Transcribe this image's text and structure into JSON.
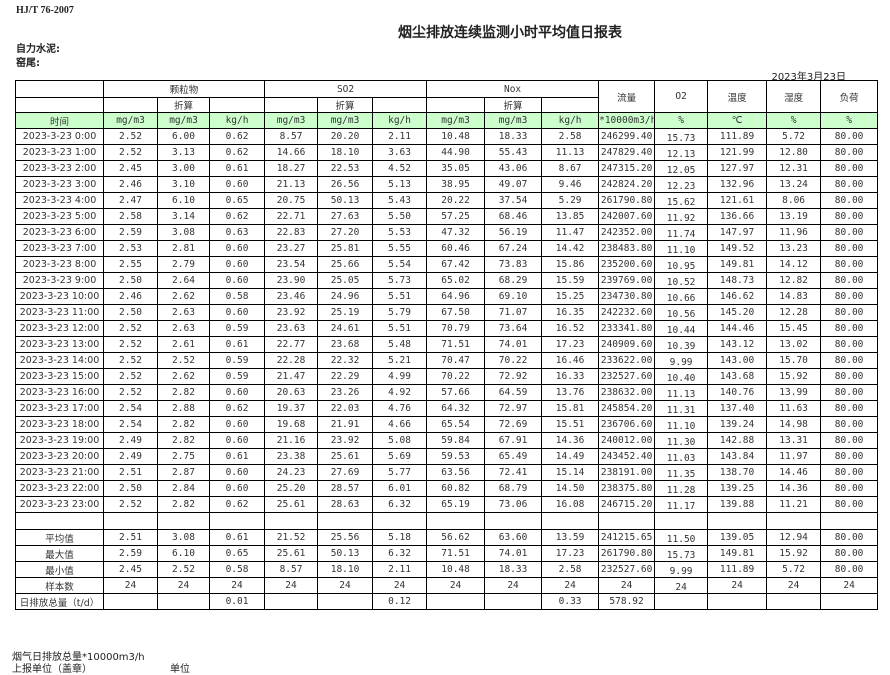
{
  "standard": "HJ/T  76-2007",
  "title": "烟尘排放连续监测小时平均值日报表",
  "plant": "自力水泥:",
  "kiln": "窑尾:",
  "date": "2023年3月23日",
  "headers": {
    "particulate": "颗粒物",
    "so2": "SO2",
    "nox": "Nox",
    "converted": "折算",
    "flow": "流量",
    "o2": "O2",
    "temperature": "温度",
    "humidity": "湿度",
    "load": "负荷"
  },
  "units": [
    "时间",
    "mg/m3",
    "mg/m3",
    "kg/h",
    "mg/m3",
    "mg/m3",
    "kg/h",
    "mg/m3",
    "mg/m3",
    "kg/h",
    "*10000m3/h",
    "%",
    "℃",
    "%",
    "%"
  ],
  "rows": [
    [
      "2023-3-23 0:00",
      "2.52",
      "6.00",
      "0.62",
      "8.57",
      "20.20",
      "2.11",
      "10.48",
      "18.33",
      "2.58",
      "246299.40",
      "15.73",
      "111.89",
      "5.72",
      "80.00"
    ],
    [
      "2023-3-23 1:00",
      "2.52",
      "3.13",
      "0.62",
      "14.66",
      "18.10",
      "3.63",
      "44.90",
      "55.43",
      "11.13",
      "247829.40",
      "12.13",
      "121.99",
      "12.80",
      "80.00"
    ],
    [
      "2023-3-23 2:00",
      "2.45",
      "3.00",
      "0.61",
      "18.27",
      "22.53",
      "4.52",
      "35.05",
      "43.06",
      "8.67",
      "247315.20",
      "12.05",
      "127.97",
      "12.31",
      "80.00"
    ],
    [
      "2023-3-23 3:00",
      "2.46",
      "3.10",
      "0.60",
      "21.13",
      "26.56",
      "5.13",
      "38.95",
      "49.07",
      "9.46",
      "242824.20",
      "12.23",
      "132.96",
      "13.24",
      "80.00"
    ],
    [
      "2023-3-23 4:00",
      "2.47",
      "6.10",
      "0.65",
      "20.75",
      "50.13",
      "5.43",
      "20.22",
      "37.54",
      "5.29",
      "261790.80",
      "15.62",
      "121.61",
      "8.06",
      "80.00"
    ],
    [
      "2023-3-23 5:00",
      "2.58",
      "3.14",
      "0.62",
      "22.71",
      "27.63",
      "5.50",
      "57.25",
      "68.46",
      "13.85",
      "242007.60",
      "11.92",
      "136.66",
      "13.19",
      "80.00"
    ],
    [
      "2023-3-23 6:00",
      "2.59",
      "3.08",
      "0.63",
      "22.83",
      "27.20",
      "5.53",
      "47.32",
      "56.19",
      "11.47",
      "242352.00",
      "11.74",
      "147.97",
      "11.96",
      "80.00"
    ],
    [
      "2023-3-23 7:00",
      "2.53",
      "2.81",
      "0.60",
      "23.27",
      "25.81",
      "5.55",
      "60.46",
      "67.24",
      "14.42",
      "238483.80",
      "11.10",
      "149.52",
      "13.23",
      "80.00"
    ],
    [
      "2023-3-23 8:00",
      "2.55",
      "2.79",
      "0.60",
      "23.54",
      "25.66",
      "5.54",
      "67.42",
      "73.83",
      "15.86",
      "235200.60",
      "10.95",
      "149.81",
      "14.12",
      "80.00"
    ],
    [
      "2023-3-23 9:00",
      "2.50",
      "2.64",
      "0.60",
      "23.90",
      "25.05",
      "5.73",
      "65.02",
      "68.29",
      "15.59",
      "239769.00",
      "10.52",
      "148.73",
      "12.82",
      "80.00"
    ],
    [
      "2023-3-23 10:00",
      "2.46",
      "2.62",
      "0.58",
      "23.46",
      "24.96",
      "5.51",
      "64.96",
      "69.10",
      "15.25",
      "234730.80",
      "10.66",
      "146.62",
      "14.83",
      "80.00"
    ],
    [
      "2023-3-23 11:00",
      "2.50",
      "2.63",
      "0.60",
      "23.92",
      "25.19",
      "5.79",
      "67.50",
      "71.07",
      "16.35",
      "242232.60",
      "10.56",
      "145.20",
      "12.28",
      "80.00"
    ],
    [
      "2023-3-23 12:00",
      "2.52",
      "2.63",
      "0.59",
      "23.63",
      "24.61",
      "5.51",
      "70.79",
      "73.64",
      "16.52",
      "233341.80",
      "10.44",
      "144.46",
      "15.45",
      "80.00"
    ],
    [
      "2023-3-23 13:00",
      "2.52",
      "2.61",
      "0.61",
      "22.77",
      "23.68",
      "5.48",
      "71.51",
      "74.01",
      "17.23",
      "240909.60",
      "10.39",
      "143.12",
      "13.02",
      "80.00"
    ],
    [
      "2023-3-23 14:00",
      "2.52",
      "2.52",
      "0.59",
      "22.28",
      "22.32",
      "5.21",
      "70.47",
      "70.22",
      "16.46",
      "233622.00",
      "9.99",
      "143.00",
      "15.70",
      "80.00"
    ],
    [
      "2023-3-23 15:00",
      "2.52",
      "2.62",
      "0.59",
      "21.47",
      "22.29",
      "4.99",
      "70.22",
      "72.92",
      "16.33",
      "232527.60",
      "10.40",
      "143.68",
      "15.92",
      "80.00"
    ],
    [
      "2023-3-23 16:00",
      "2.52",
      "2.82",
      "0.60",
      "20.63",
      "23.26",
      "4.92",
      "57.66",
      "64.59",
      "13.76",
      "238632.00",
      "11.13",
      "140.76",
      "13.99",
      "80.00"
    ],
    [
      "2023-3-23 17:00",
      "2.54",
      "2.88",
      "0.62",
      "19.37",
      "22.03",
      "4.76",
      "64.32",
      "72.97",
      "15.81",
      "245854.20",
      "11.31",
      "137.40",
      "11.63",
      "80.00"
    ],
    [
      "2023-3-23 18:00",
      "2.54",
      "2.82",
      "0.60",
      "19.68",
      "21.91",
      "4.66",
      "65.54",
      "72.69",
      "15.51",
      "236706.60",
      "11.10",
      "139.24",
      "14.98",
      "80.00"
    ],
    [
      "2023-3-23 19:00",
      "2.49",
      "2.82",
      "0.60",
      "21.16",
      "23.92",
      "5.08",
      "59.84",
      "67.91",
      "14.36",
      "240012.00",
      "11.30",
      "142.88",
      "13.31",
      "80.00"
    ],
    [
      "2023-3-23 20:00",
      "2.49",
      "2.75",
      "0.61",
      "23.38",
      "25.61",
      "5.69",
      "59.53",
      "65.49",
      "14.49",
      "243452.40",
      "11.03",
      "143.84",
      "11.97",
      "80.00"
    ],
    [
      "2023-3-23 21:00",
      "2.51",
      "2.87",
      "0.60",
      "24.23",
      "27.69",
      "5.77",
      "63.56",
      "72.41",
      "15.14",
      "238191.00",
      "11.35",
      "138.70",
      "14.46",
      "80.00"
    ],
    [
      "2023-3-23 22:00",
      "2.50",
      "2.84",
      "0.60",
      "25.20",
      "28.57",
      "6.01",
      "60.82",
      "68.79",
      "14.50",
      "238375.80",
      "11.28",
      "139.25",
      "14.36",
      "80.00"
    ],
    [
      "2023-3-23 23:00",
      "2.52",
      "2.82",
      "0.62",
      "25.61",
      "28.63",
      "6.32",
      "65.19",
      "73.06",
      "16.08",
      "246715.20",
      "11.17",
      "139.88",
      "11.21",
      "80.00"
    ]
  ],
  "summary": [
    [
      "平均值",
      "2.51",
      "3.08",
      "0.61",
      "21.52",
      "25.56",
      "5.18",
      "56.62",
      "63.60",
      "13.59",
      "241215.65",
      "11.50",
      "139.05",
      "12.94",
      "80.00"
    ],
    [
      "最大值",
      "2.59",
      "6.10",
      "0.65",
      "25.61",
      "50.13",
      "6.32",
      "71.51",
      "74.01",
      "17.23",
      "261790.80",
      "15.73",
      "149.81",
      "15.92",
      "80.00"
    ],
    [
      "最小值",
      "2.45",
      "2.52",
      "0.58",
      "8.57",
      "18.10",
      "2.11",
      "10.48",
      "18.33",
      "2.58",
      "232527.60",
      "9.99",
      "111.89",
      "5.72",
      "80.00"
    ],
    [
      "样本数",
      "24",
      "24",
      "24",
      "24",
      "24",
      "24",
      "24",
      "24",
      "24",
      "24",
      "24",
      "24",
      "24",
      "24"
    ],
    [
      "日排放总量（t/d）",
      "",
      "",
      "0.01",
      "",
      "",
      "0.12",
      "",
      "",
      "0.33",
      "578.92",
      "",
      "",
      "",
      ""
    ]
  ],
  "footer": {
    "flue_total": "烟气日排放总量*10000m3/h",
    "reporter": "上报单位（盖章）",
    "unit": "单位"
  }
}
